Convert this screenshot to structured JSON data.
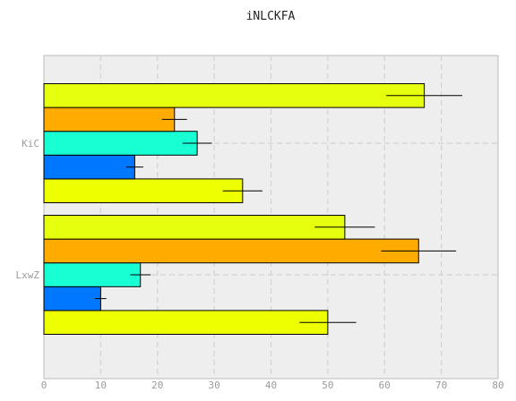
{
  "chart_data": {
    "type": "bar",
    "orientation": "horizontal",
    "title": "iNLCKFA",
    "xlabel": "",
    "ylabel": "",
    "xlim": [
      0,
      80
    ],
    "xticks": [
      0,
      10,
      20,
      30,
      40,
      50,
      60,
      70,
      80
    ],
    "categories": [
      "LxwZ",
      "KiC"
    ],
    "grid": true,
    "legend": "none",
    "series": [
      {
        "color": "#eeff00",
        "values": [
          50,
          35
        ],
        "errors": [
          5,
          3.5
        ]
      },
      {
        "color": "#0077ff",
        "values": [
          10,
          16
        ],
        "errors": [
          1,
          1.5
        ]
      },
      {
        "color": "#19ffd4",
        "values": [
          17,
          27
        ],
        "errors": [
          1.8,
          2.6
        ]
      },
      {
        "color": "#ffab00",
        "values": [
          66,
          23
        ],
        "errors": [
          6.6,
          2.2
        ]
      },
      {
        "color": "#e5ff0f",
        "values": [
          53,
          67
        ],
        "errors": [
          5.3,
          6.7
        ]
      }
    ]
  }
}
